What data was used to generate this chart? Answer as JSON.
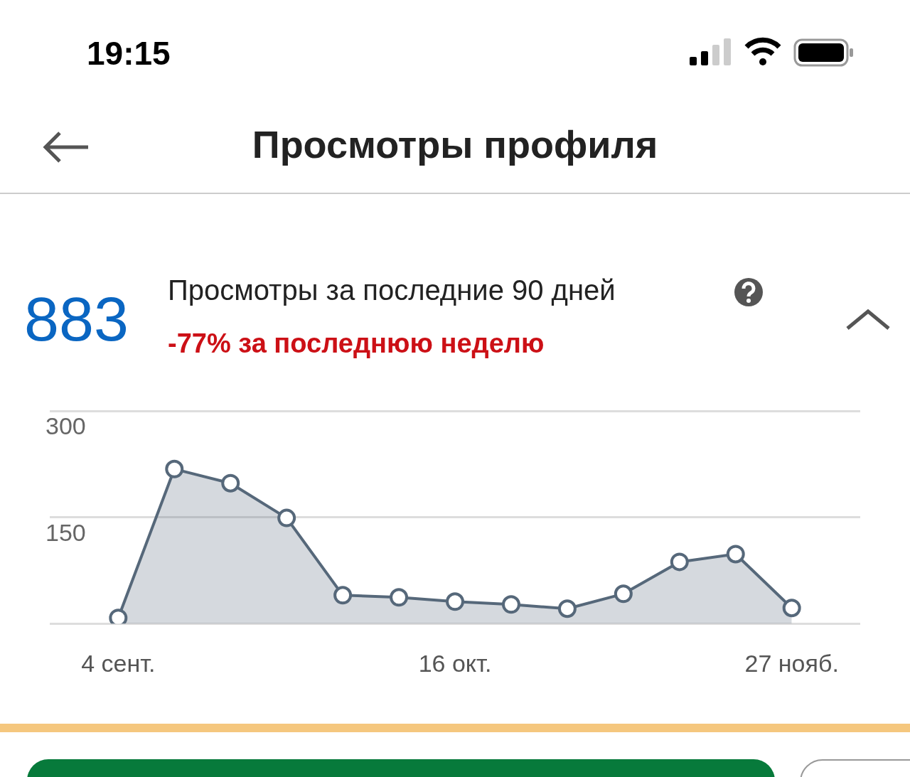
{
  "chart_data": {
    "type": "area",
    "title": "Просмотры профиля",
    "subtitle": "Просмотры за последние 90 дней",
    "annotations": [
      "19:15",
      "883",
      "-77% за последнюю неделю"
    ],
    "categories": [
      "4 сент.",
      null,
      null,
      null,
      null,
      null,
      "16 окт.",
      null,
      null,
      null,
      null,
      null,
      "27 нояб."
    ],
    "series": [
      {
        "color": "#56687a",
        "values": [
          8,
          218,
          198,
          149,
          40,
          37,
          31,
          27,
          21,
          42,
          87,
          98,
          22
        ]
      }
    ],
    "ylim": [
      0,
      300
    ],
    "yticks": [
      {
        "value": 0,
        "label": null
      },
      150,
      300
    ],
    "grid": "y",
    "marker": "circle",
    "line_style": "solid",
    "legend": false
  }
}
